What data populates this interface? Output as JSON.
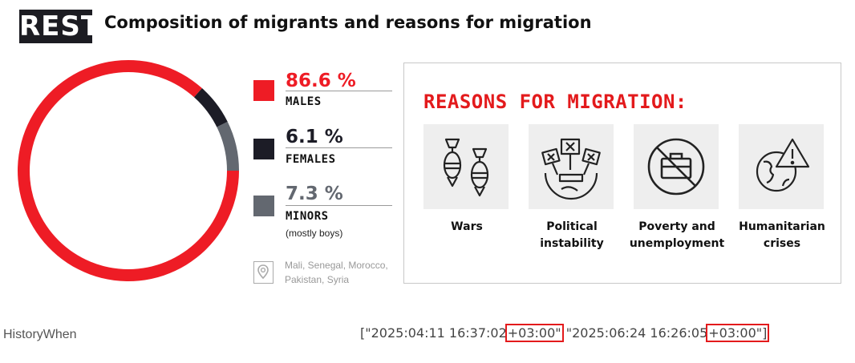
{
  "header": {
    "logo": "REST",
    "title": "Composition of migrants and reasons for migration"
  },
  "colors": {
    "males": "#ee1c25",
    "females": "#1c1c26",
    "minors": "#636870",
    "accent": "#e31a1c"
  },
  "chart_data": {
    "type": "pie",
    "slices": [
      {
        "label": "MALES",
        "value": 86.6,
        "display": "86.6 %",
        "color": "#ee1c25"
      },
      {
        "label": "FEMALES",
        "value": 6.1,
        "display": "6.1 %",
        "color": "#1c1c26"
      },
      {
        "label": "MINORS",
        "value": 7.3,
        "display": "7.3 %",
        "color": "#636870",
        "note": "(mostly boys)"
      }
    ]
  },
  "origin": {
    "icon": "map-pin-icon",
    "line1": "Mali, Senegal, Morocco,",
    "line2": "Pakistan, Syria"
  },
  "reasons_panel": {
    "title": "REASONS FOR MIGRATION:",
    "items": [
      {
        "icon": "bombs-icon",
        "line1": "Wars",
        "line2": ""
      },
      {
        "icon": "protest-signs-icon",
        "line1": "Political",
        "line2": "instability"
      },
      {
        "icon": "no-briefcase-icon",
        "line1": "Poverty and",
        "line2": "unemployment"
      },
      {
        "icon": "globe-warning-icon",
        "line1": "Humanitarian",
        "line2": "crises"
      }
    ]
  },
  "footer": {
    "field_name": "HistoryWhen",
    "ts1_prefix": "[\"2025:04:11 16:37:02",
    "ts1_tz": "+03:00\"",
    "ts2_prefix": " \"2025:06:24 16:26:05",
    "ts2_tz": "+03:00\"]"
  }
}
